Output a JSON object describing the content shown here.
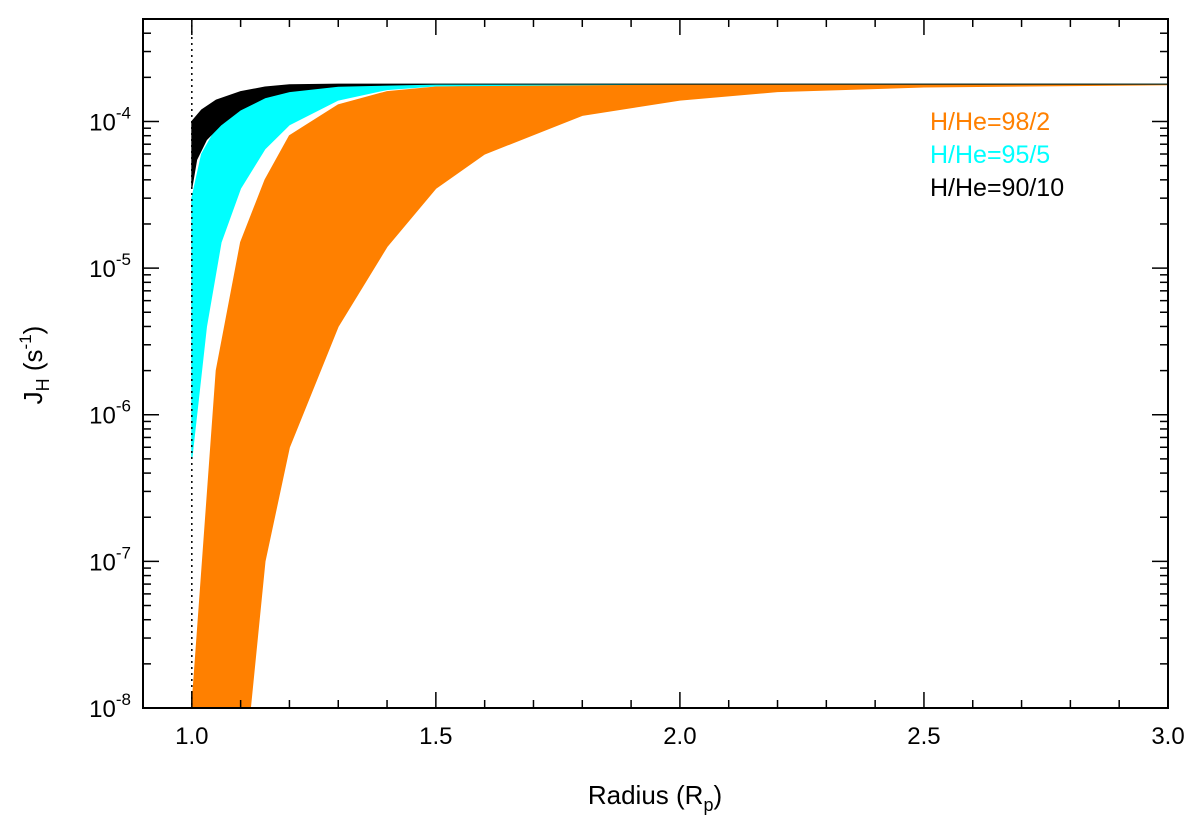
{
  "chart_data": {
    "type": "area",
    "xlabel": {
      "main": "Radius (R",
      "sub": "p",
      "tail": ")"
    },
    "ylabel": {
      "main": "J",
      "sub": "H",
      "mid": " (s",
      "sup": "-1",
      "tail": ")"
    },
    "xlim": [
      0.9,
      3.0
    ],
    "ylim": [
      1e-08,
      0.0005
    ],
    "yscale": "log",
    "x_ticks": [
      1.0,
      1.5,
      2.0,
      2.5,
      3.0
    ],
    "x_tick_labels": [
      "1.0",
      "1.5",
      "2.0",
      "2.5",
      "3.0"
    ],
    "y_ticks": [
      {
        "base": "10",
        "exp": "-8",
        "value": 1e-08
      },
      {
        "base": "10",
        "exp": "-7",
        "value": 1e-07
      },
      {
        "base": "10",
        "exp": "-6",
        "value": 1e-06
      },
      {
        "base": "10",
        "exp": "-5",
        "value": 1e-05
      },
      {
        "base": "10",
        "exp": "-4",
        "value": 0.0001
      }
    ],
    "reference_line": {
      "x": 1.0,
      "style": "dotted"
    },
    "legend_position": "top-right",
    "series": [
      {
        "name": "H/He=98/2",
        "color": "#ff8000",
        "upper": {
          "x": [
            1.0,
            1.05,
            1.1,
            1.15,
            1.2,
            1.3,
            1.4,
            1.5,
            1.7,
            2.0,
            2.5,
            3.0
          ],
          "y": [
            1e-08,
            2e-06,
            1.5e-05,
            4e-05,
            8e-05,
            0.00013,
            0.00016,
            0.000172,
            0.000178,
            0.00018,
            0.00018,
            0.00018
          ]
        },
        "lower": {
          "x": [
            1.0,
            1.12,
            1.15,
            1.2,
            1.3,
            1.4,
            1.5,
            1.6,
            1.8,
            2.0,
            2.2,
            2.5,
            3.0
          ],
          "y": [
            1e-08,
            1e-08,
            1e-07,
            6e-07,
            4e-06,
            1.4e-05,
            3.5e-05,
            6e-05,
            0.00011,
            0.00014,
            0.00016,
            0.000172,
            0.000178
          ]
        }
      },
      {
        "name": "H/He=95/5",
        "color": "#00ffff",
        "upper": {
          "x": [
            1.0,
            1.02,
            1.05,
            1.1,
            1.15,
            1.2,
            1.3,
            1.5,
            2.0,
            3.0
          ],
          "y": [
            3e-05,
            6e-05,
            9e-05,
            0.00013,
            0.000155,
            0.00017,
            0.000178,
            0.00018,
            0.00018,
            0.00018
          ]
        },
        "lower": {
          "x": [
            1.0,
            1.03,
            1.06,
            1.1,
            1.15,
            1.2,
            1.3,
            1.4,
            1.5,
            2.0,
            3.0
          ],
          "y": [
            5e-07,
            4e-06,
            1.5e-05,
            3.5e-05,
            6.5e-05,
            9.5e-05,
            0.00014,
            0.000165,
            0.000175,
            0.00018,
            0.00018
          ]
        }
      },
      {
        "name": "H/He=90/10",
        "color": "#000000",
        "upper": {
          "x": [
            1.0,
            1.02,
            1.05,
            1.1,
            1.15,
            1.2,
            1.3,
            1.5,
            3.0
          ],
          "y": [
            0.0001,
            0.00012,
            0.00014,
            0.00016,
            0.000172,
            0.000178,
            0.00018,
            0.00018,
            0.00018
          ]
        },
        "lower": {
          "x": [
            1.0,
            1.01,
            1.03,
            1.06,
            1.1,
            1.15,
            1.2,
            1.3,
            1.5,
            3.0
          ],
          "y": [
            3.5e-05,
            5.5e-05,
            7.5e-05,
            9.5e-05,
            0.00012,
            0.000145,
            0.00016,
            0.000174,
            0.00018,
            0.00018
          ]
        }
      }
    ]
  }
}
